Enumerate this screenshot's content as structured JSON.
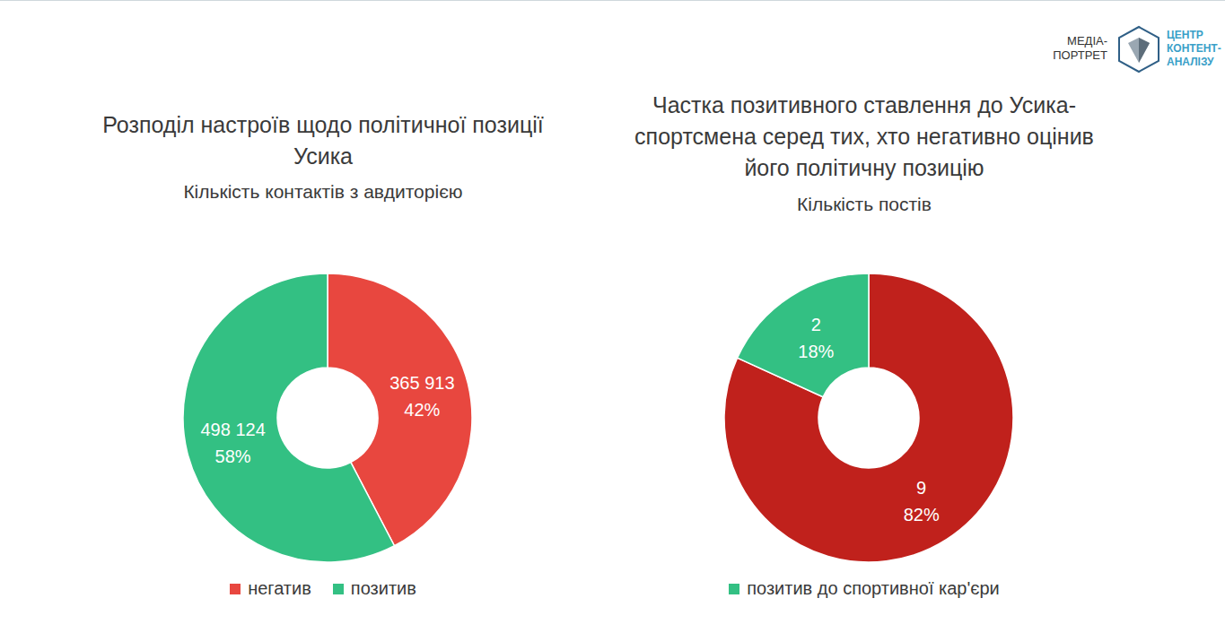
{
  "logo": {
    "left": [
      "МЕДІА-",
      "ПОРТРЕТ"
    ],
    "right": [
      "ЦЕНТР",
      "КОНТЕНТ-",
      "АНАЛІЗУ"
    ]
  },
  "chart_data": [
    {
      "type": "pie",
      "title": "Розподіл настроїв щодо політичної позиції Усика",
      "subtitle": "Кількість контактів з авдиторією",
      "categories": [
        "негатив",
        "позитив"
      ],
      "values": [
        365913,
        498124
      ],
      "value_labels": [
        "365 913",
        "498 124"
      ],
      "percent_labels": [
        "42%",
        "58%"
      ],
      "colors": [
        "#e8473f",
        "#33c083"
      ],
      "data_labels": true,
      "legend": "bottom"
    },
    {
      "type": "pie",
      "title": "Частка позитивного ставлення до Усика-спортсмена серед тих, хто негативно оцінив його політичну позицію",
      "subtitle": "Кількість постів",
      "categories": [
        null,
        "позитив до спортивної кар'єри"
      ],
      "values": [
        9,
        2
      ],
      "value_labels": [
        "9",
        "2"
      ],
      "percent_labels": [
        "82%",
        "18%"
      ],
      "colors": [
        "#c0211c",
        "#33c083"
      ],
      "data_labels": true,
      "legend": "bottom"
    }
  ]
}
